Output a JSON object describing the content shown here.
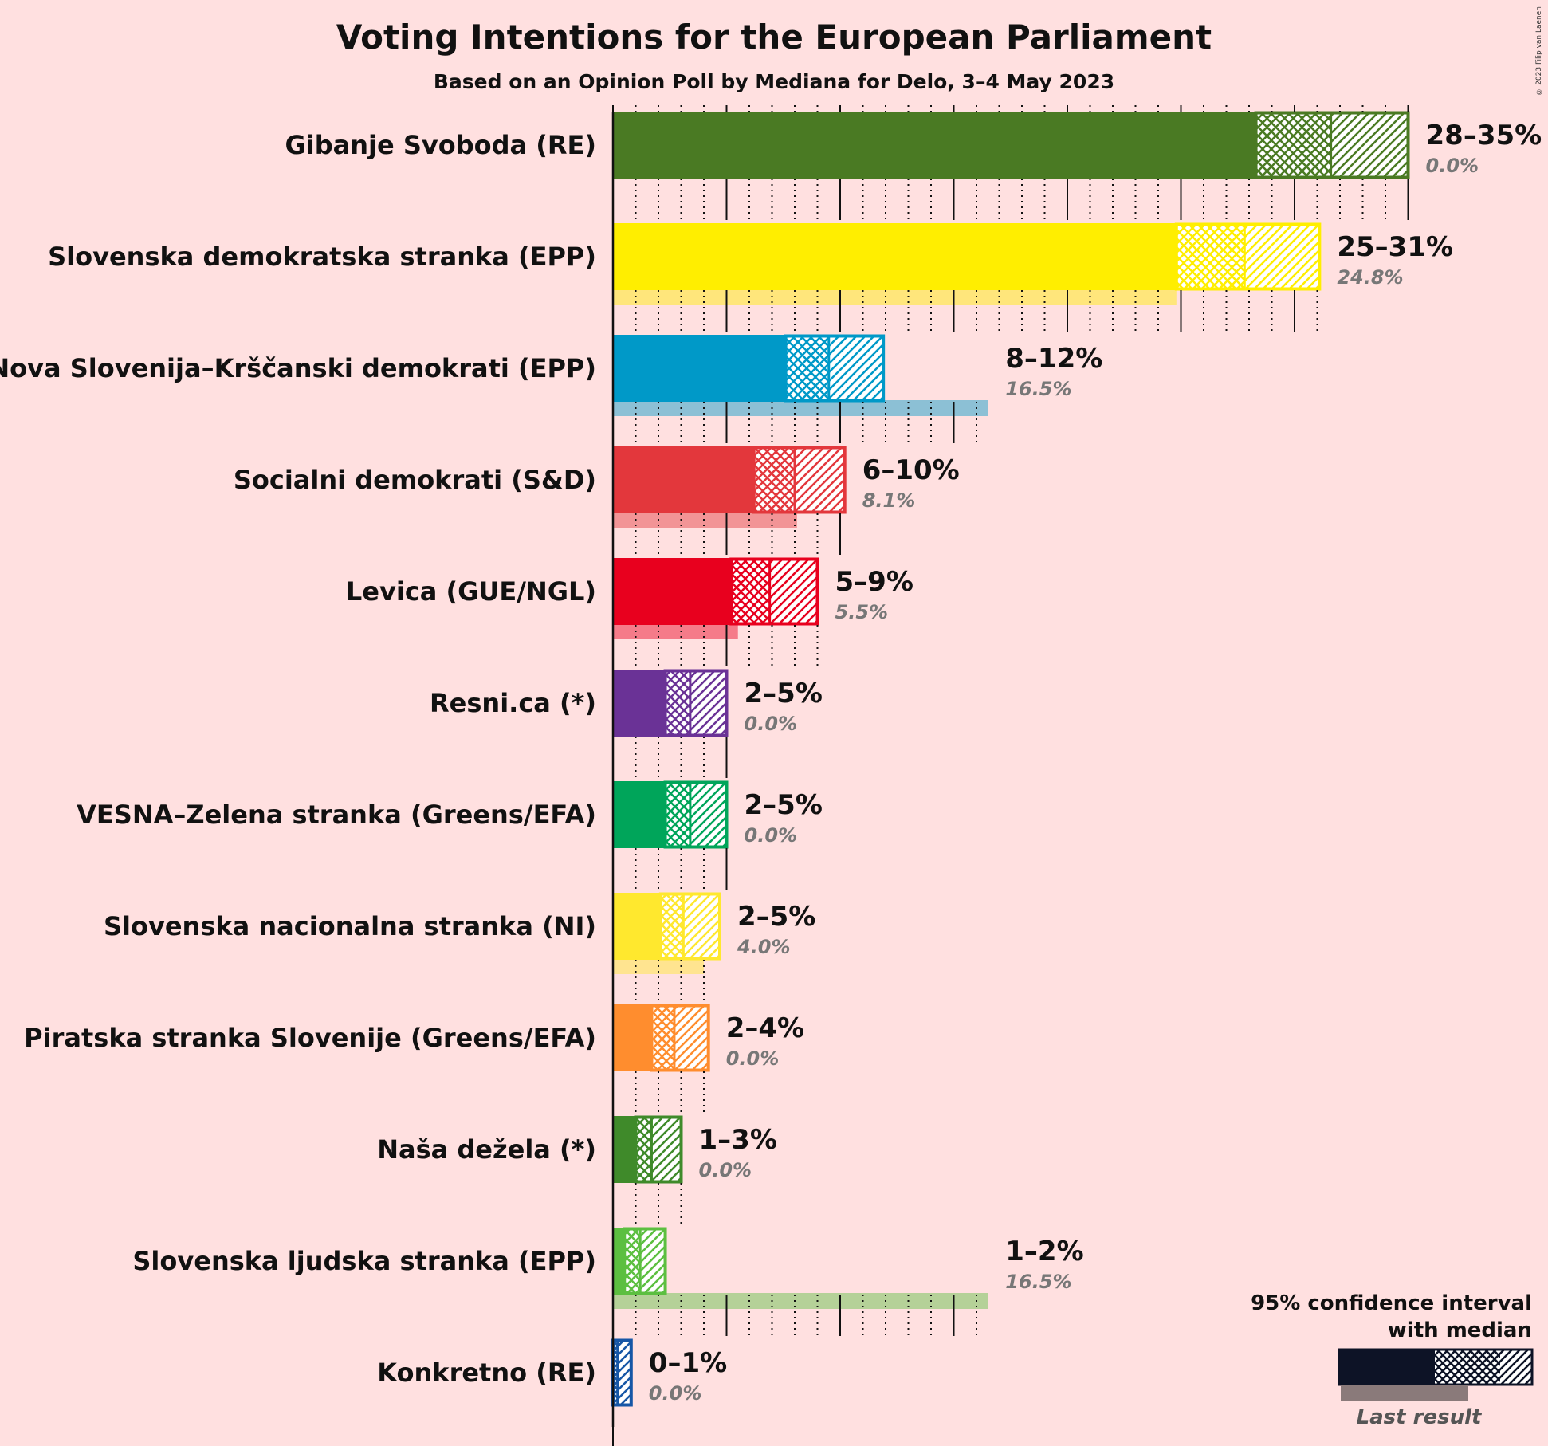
{
  "title": "Voting Intentions for the European Parliament",
  "subtitle": "Based on an Opinion Poll by Mediana for Delo, 3–4 May 2023",
  "copyright": "© 2023 Filip van Laenen",
  "legend": {
    "title_line1": "95% confidence interval",
    "title_line2": "with median",
    "last_result": "Last result"
  },
  "chart_data": {
    "type": "bar",
    "orientation": "horizontal",
    "x_range": [
      0,
      35
    ],
    "grid": true,
    "legend_placement": "bottom-right",
    "series": [
      {
        "name": "Gibanje Svoboda (RE)",
        "color": "#4a7a23",
        "low": 28.3,
        "median": 31.6,
        "high": 35.0,
        "range_label": "28–35%",
        "last_result": 0.0,
        "last_label": "0.0%"
      },
      {
        "name": "Slovenska demokratska stranka (EPP)",
        "color": "#ffee00",
        "low": 24.8,
        "median": 27.8,
        "high": 31.1,
        "range_label": "25–31%",
        "last_result": 24.8,
        "last_label": "24.8%"
      },
      {
        "name": "Nova Slovenija–Krščanski demokrati (EPP)",
        "color": "#0099c8",
        "low": 7.6,
        "median": 9.5,
        "high": 11.9,
        "range_label": "8–12%",
        "last_result": 16.5,
        "last_label": "16.5%"
      },
      {
        "name": "Socialni demokrati (S&D)",
        "color": "#e3373c",
        "low": 6.2,
        "median": 8.0,
        "high": 10.2,
        "range_label": "6–10%",
        "last_result": 8.1,
        "last_label": "8.1%"
      },
      {
        "name": "Levica (GUE/NGL)",
        "color": "#e8001e",
        "low": 5.2,
        "median": 6.9,
        "high": 9.0,
        "range_label": "5–9%",
        "last_result": 5.5,
        "last_label": "5.5%"
      },
      {
        "name": "Resni.ca (*)",
        "color": "#6a3296",
        "low": 2.3,
        "median": 3.4,
        "high": 5.0,
        "range_label": "2–5%",
        "last_result": 0.0,
        "last_label": "0.0%"
      },
      {
        "name": "VESNA–Zelena stranka (Greens/EFA)",
        "color": "#00a55a",
        "low": 2.3,
        "median": 3.4,
        "high": 5.0,
        "range_label": "2–5%",
        "last_result": 0.0,
        "last_label": "0.0%"
      },
      {
        "name": "Slovenska nacionalna stranka (NI)",
        "color": "#ffe82e",
        "low": 2.1,
        "median": 3.1,
        "high": 4.7,
        "range_label": "2–5%",
        "last_result": 4.0,
        "last_label": "4.0%"
      },
      {
        "name": "Piratska stranka Slovenije (Greens/EFA)",
        "color": "#ff8d2e",
        "low": 1.7,
        "median": 2.7,
        "high": 4.2,
        "range_label": "2–4%",
        "last_result": 0.0,
        "last_label": "0.0%"
      },
      {
        "name": "Naša dežela (*)",
        "color": "#3f8a2a",
        "low": 1.0,
        "median": 1.7,
        "high": 3.0,
        "range_label": "1–3%",
        "last_result": 0.0,
        "last_label": "0.0%"
      },
      {
        "name": "Slovenska ljudska stranka (EPP)",
        "color": "#5cbf40",
        "low": 0.5,
        "median": 1.2,
        "high": 2.3,
        "range_label": "1–2%",
        "last_result": 16.5,
        "last_label": "16.5%"
      },
      {
        "name": "Konkretno (RE)",
        "color": "#1656a6",
        "low": 0.0,
        "median": 0.2,
        "high": 0.8,
        "range_label": "0–1%",
        "last_result": 0.0,
        "last_label": "0.0%"
      }
    ]
  }
}
